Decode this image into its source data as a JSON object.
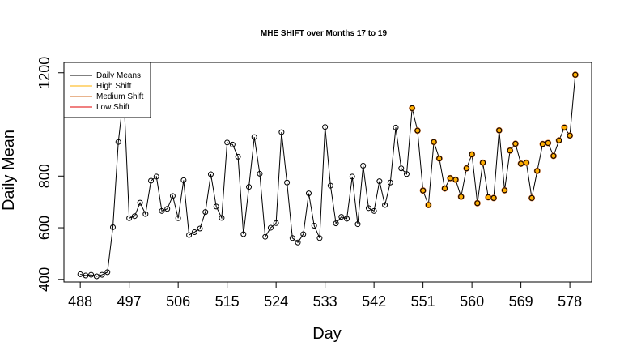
{
  "chart_data": {
    "type": "line",
    "title": "MHE SHIFT over Months 17 to 19",
    "xlabel": "Day",
    "ylabel": "Daily Mean",
    "xlim": [
      485,
      582
    ],
    "ylim": [
      390,
      1240
    ],
    "x_ticks": [
      488,
      497,
      506,
      515,
      524,
      533,
      542,
      551,
      560,
      569,
      578
    ],
    "y_ticks": [
      400,
      600,
      800,
      1200
    ],
    "legend": {
      "position": "top-left",
      "entries": [
        {
          "label": "Daily Means",
          "color": "#000000"
        },
        {
          "label": "High Shift",
          "color": "#FFB000"
        },
        {
          "label": "Medium Shift",
          "color": "#D2691E"
        },
        {
          "label": "Low Shift",
          "color": "#E00000"
        }
      ]
    },
    "series": [
      {
        "name": "Daily Means",
        "color": "#000000",
        "x": [
          488,
          489,
          490,
          491,
          492,
          493,
          494,
          495,
          496,
          497,
          498,
          499,
          500,
          501,
          502,
          503,
          504,
          505,
          506,
          507,
          508,
          509,
          510,
          511,
          512,
          513,
          514,
          515,
          516,
          517,
          518,
          519,
          520,
          521,
          522,
          523,
          524,
          525,
          526,
          527,
          528,
          529,
          530,
          531,
          532,
          533,
          534,
          535,
          536,
          537,
          538,
          539,
          540,
          541,
          542,
          543,
          544,
          545,
          546,
          547,
          548,
          549,
          550,
          551,
          552,
          553,
          554,
          555,
          556,
          557,
          558,
          559,
          560,
          561,
          562,
          563,
          564,
          565,
          566,
          567,
          568,
          569,
          570,
          571,
          572,
          573,
          574,
          575,
          576,
          577,
          578,
          579
        ],
        "values": [
          420,
          415,
          418,
          412,
          418,
          428,
          602,
          932,
          1117,
          637,
          645,
          697,
          653,
          782,
          798,
          665,
          673,
          723,
          637,
          784,
          572,
          583,
          597,
          661,
          807,
          682,
          638,
          930,
          922,
          875,
          575,
          758,
          951,
          809,
          565,
          600,
          618,
          970,
          775,
          560,
          543,
          575,
          733,
          608,
          560,
          990,
          763,
          617,
          642,
          635,
          798,
          614,
          840,
          676,
          665,
          780,
          688,
          775,
          988,
          830,
          808,
          1063,
          976,
          744,
          688,
          932,
          868,
          752,
          792,
          786,
          720,
          830,
          884,
          695,
          852,
          718,
          715,
          977,
          745,
          899,
          925,
          848,
          852,
          715,
          820,
          924,
          928,
          878,
          938,
          988,
          957,
          1192
        ]
      }
    ],
    "highlighted": {
      "colors": [
        "#D2691E",
        "#FFB000"
      ],
      "from_x": 549
    }
  }
}
